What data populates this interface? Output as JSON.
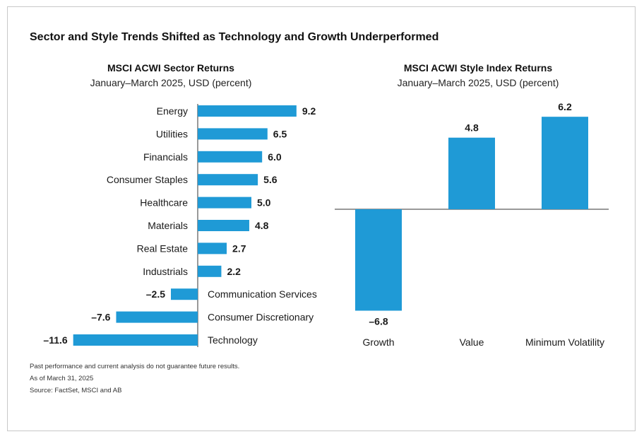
{
  "main_title": "Sector and Style Trends Shifted as Technology and Growth Underperformed",
  "colors": {
    "bar": "#1f9ad6",
    "text": "#1a1a1a",
    "axis": "#333333"
  },
  "chart_data": [
    {
      "type": "bar",
      "orientation": "horizontal",
      "title": "MSCI ACWI Sector Returns",
      "subtitle": "January–March 2025, USD (percent)",
      "categories": [
        "Energy",
        "Utilities",
        "Financials",
        "Consumer Staples",
        "Healthcare",
        "Materials",
        "Real Estate",
        "Industrials",
        "Communication Services",
        "Consumer Discretionary",
        "Technology"
      ],
      "values": [
        9.2,
        6.5,
        6.0,
        5.6,
        5.0,
        4.8,
        2.7,
        2.2,
        -2.5,
        -7.6,
        -11.6
      ],
      "value_labels": [
        "9.2",
        "6.5",
        "6.0",
        "5.6",
        "5.0",
        "4.8",
        "2.7",
        "2.2",
        "–2.5",
        "–7.6",
        "–11.6"
      ]
    },
    {
      "type": "bar",
      "orientation": "vertical",
      "title": "MSCI ACWI Style Index Returns",
      "subtitle": "January–March 2025, USD (percent)",
      "categories": [
        "Growth",
        "Value",
        "Minimum Volatility"
      ],
      "values": [
        -6.8,
        4.8,
        6.2
      ],
      "value_labels": [
        "–6.8",
        "4.8",
        "6.2"
      ]
    }
  ],
  "footnotes": [
    "Past performance and current analysis do not guarantee future results.",
    "As of March 31, 2025",
    "Source: FactSet, MSCI and AB"
  ]
}
